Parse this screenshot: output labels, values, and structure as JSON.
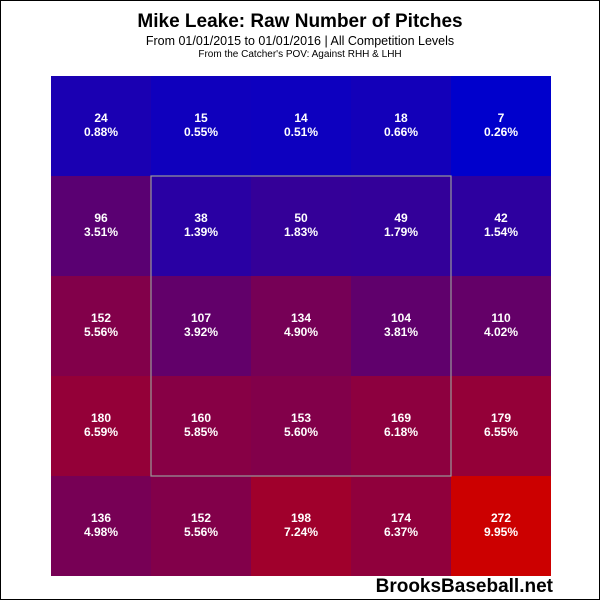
{
  "chart_data": {
    "type": "heatmap",
    "title": "Mike Leake: Raw Number of Pitches",
    "subtitle": "From 01/01/2015 to 01/01/2016 | All Competition Levels",
    "subtitle2": "From the Catcher's POV:  Against RHH & LHH",
    "rows": 5,
    "cols": 5,
    "counts": [
      [
        24,
        15,
        14,
        18,
        7
      ],
      [
        96,
        38,
        50,
        49,
        42
      ],
      [
        152,
        107,
        134,
        104,
        110
      ],
      [
        180,
        160,
        153,
        169,
        179
      ],
      [
        136,
        152,
        198,
        174,
        272
      ]
    ],
    "percents": [
      [
        "0.88%",
        "0.55%",
        "0.51%",
        "0.66%",
        "0.26%"
      ],
      [
        "3.51%",
        "1.39%",
        "1.83%",
        "1.79%",
        "1.54%"
      ],
      [
        "5.56%",
        "3.92%",
        "4.90%",
        "3.81%",
        "4.02%"
      ],
      [
        "6.59%",
        "5.85%",
        "5.60%",
        "6.18%",
        "6.55%"
      ],
      [
        "4.98%",
        "5.56%",
        "7.24%",
        "6.37%",
        "9.95%"
      ]
    ],
    "color_scale": {
      "low": "#0000cc",
      "high": "#cc0000"
    },
    "strike_zone": {
      "rows": [
        1,
        3
      ],
      "cols": [
        1,
        3
      ]
    }
  },
  "watermark": "BrooksBaseball.net"
}
